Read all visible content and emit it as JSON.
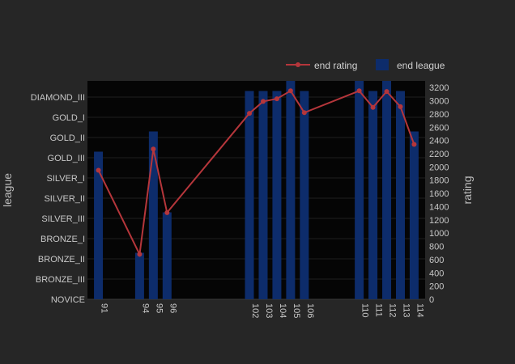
{
  "chart_data": {
    "type": "bar",
    "categories": [
      "91",
      "94",
      "95",
      "96",
      "102",
      "103",
      "104",
      "105",
      "106",
      "110",
      "111",
      "112",
      "113",
      "114"
    ],
    "x": [
      91,
      94,
      95,
      96,
      102,
      103,
      104,
      105,
      106,
      110,
      111,
      112,
      113,
      114
    ],
    "xlim": [
      90.2,
      114.8
    ],
    "ylabel": "league",
    "y2label": "rating",
    "league_levels": [
      "NOVICE",
      "BRONZE_III",
      "BRONZE_II",
      "BRONZE_I",
      "SILVER_III",
      "SILVER_II",
      "SILVER_I",
      "GOLD_III",
      "GOLD_II",
      "GOLD_I",
      "DIAMOND_III"
    ],
    "y_tick_labels": [
      "NOVICE",
      "BRONZE_III",
      "BRONZE_II",
      "BRONZE_I",
      "SILVER_III",
      "SILVER_II",
      "SILVER_I",
      "GOLD_III",
      "GOLD_II",
      "GOLD_I",
      "DIAMOND_III"
    ],
    "ylim": [
      0,
      10.8
    ],
    "y2_ticks": [
      "0",
      "200",
      "400",
      "600",
      "800",
      "1000",
      "1200",
      "1400",
      "1600",
      "1800",
      "2000",
      "2200",
      "2400",
      "2600",
      "2800",
      "3000",
      "3200"
    ],
    "y2lim": [
      0,
      3300
    ],
    "grid": true,
    "legend_position": "top-right",
    "series": [
      {
        "name": "end rating",
        "type": "line",
        "axis": "right",
        "color": "#b5363b",
        "values": [
          1950,
          680,
          2270,
          1310,
          2810,
          2990,
          3030,
          3150,
          2820,
          3150,
          2900,
          3140,
          2910,
          2340
        ]
      },
      {
        "name": "end league",
        "type": "bar",
        "axis": "left",
        "color": "#0d2c6b",
        "values": [
          7.3,
          2.3,
          8.3,
          4.3,
          10.3,
          10.3,
          10.3,
          10.8,
          10.3,
          10.8,
          10.3,
          10.8,
          10.3,
          8.3
        ]
      }
    ]
  }
}
